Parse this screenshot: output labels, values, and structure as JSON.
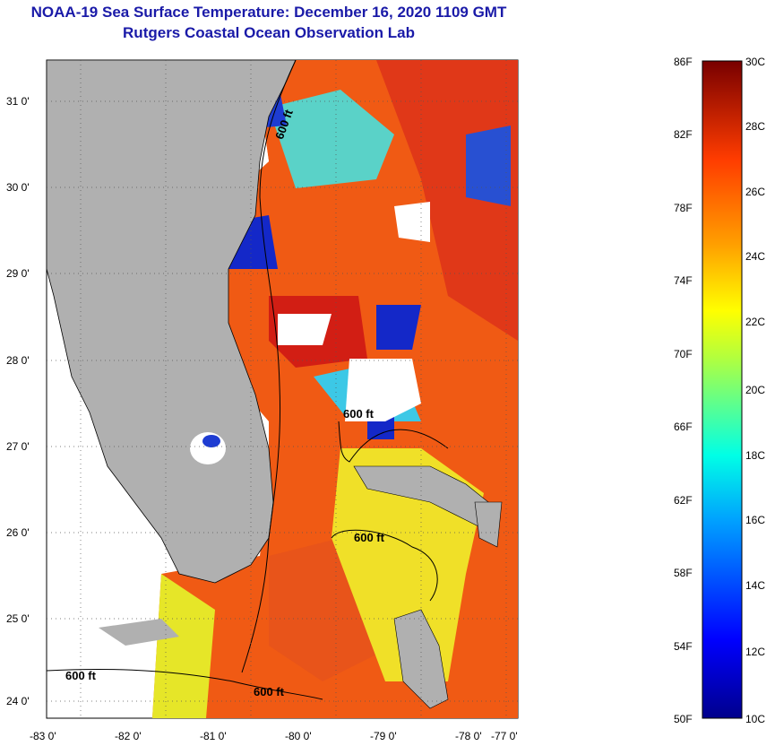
{
  "title": {
    "line1": "NOAA-19 Sea Surface Temperature:  December 16, 2020 1109 GMT",
    "line2": "Rutgers Coastal Ocean Observation Lab"
  },
  "map": {
    "lon_ticks": [
      "-83 0'",
      "-82 0'",
      "-81 0'",
      "-80 0'",
      "-79 0'",
      "-78 0'",
      "-77 0'"
    ],
    "lat_ticks": [
      "31 0'",
      "30 0'",
      "29 0'",
      "28 0'",
      "27 0'",
      "26 0'",
      "25 0'",
      "24 0'"
    ],
    "contour_labels": [
      "600 ft",
      "600 ft",
      "600 ft",
      "600 ft",
      "600 ft"
    ],
    "colors": {
      "land": "#b0b0b0",
      "cloud": "#ffffff",
      "warm": "#f05a14",
      "hot": "#d21e14",
      "mild": "#f0e628",
      "cool": "#3cc8e6",
      "cold": "#1428c8"
    }
  },
  "colorbar": {
    "f_labels": [
      "86F",
      "82F",
      "78F",
      "74F",
      "70F",
      "66F",
      "62F",
      "58F",
      "54F",
      "50F"
    ],
    "c_labels": [
      "30C",
      "28C",
      "26C",
      "24C",
      "22C",
      "20C",
      "18C",
      "16C",
      "14C",
      "12C",
      "10C"
    ]
  }
}
